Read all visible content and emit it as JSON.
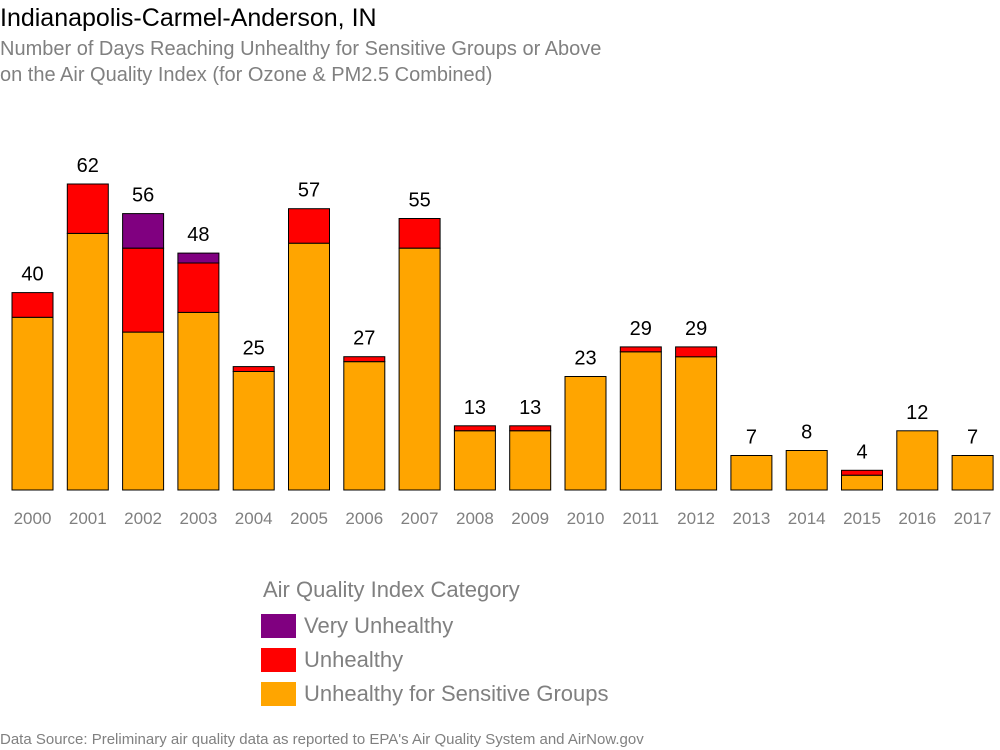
{
  "chart_data": {
    "type": "bar",
    "stacked": true,
    "title": "Indianapolis-Carmel-Anderson, IN",
    "subtitle_lines": [
      "Number of Days Reaching Unhealthy for Sensitive Groups or Above",
      "on the Air Quality Index (for Ozone & PM2.5 Combined)"
    ],
    "categories": [
      "2000",
      "2001",
      "2002",
      "2003",
      "2004",
      "2005",
      "2006",
      "2007",
      "2008",
      "2009",
      "2010",
      "2011",
      "2012",
      "2013",
      "2014",
      "2015",
      "2016",
      "2017"
    ],
    "series": [
      {
        "name": "Unhealthy for Sensitive Groups",
        "color": "#FFA500",
        "values": [
          35,
          52,
          32,
          36,
          24,
          50,
          26,
          49,
          12,
          12,
          23,
          28,
          27,
          7,
          8,
          3,
          12,
          7
        ]
      },
      {
        "name": "Unhealthy",
        "color": "#FF0000",
        "values": [
          5,
          10,
          17,
          10,
          1,
          7,
          1,
          6,
          1,
          1,
          0,
          1,
          2,
          0,
          0,
          1,
          0,
          0
        ]
      },
      {
        "name": "Very Unhealthy",
        "color": "#800080",
        "values": [
          0,
          0,
          7,
          2,
          0,
          0,
          0,
          0,
          0,
          0,
          0,
          0,
          0,
          0,
          0,
          0,
          0,
          0
        ]
      }
    ],
    "totals": [
      40,
      62,
      56,
      48,
      25,
      57,
      27,
      55,
      13,
      13,
      23,
      29,
      29,
      7,
      8,
      4,
      12,
      7
    ],
    "ylim": [
      0,
      62
    ],
    "grid": false,
    "legend": {
      "title": "Air Quality Index Category",
      "placement": "bottom-center",
      "entries": [
        "Very Unhealthy",
        "Unhealthy",
        "Unhealthy for Sensitive Groups"
      ]
    },
    "source": "Data Source: Preliminary air quality data as reported to EPA's Air Quality System and AirNow.gov"
  }
}
